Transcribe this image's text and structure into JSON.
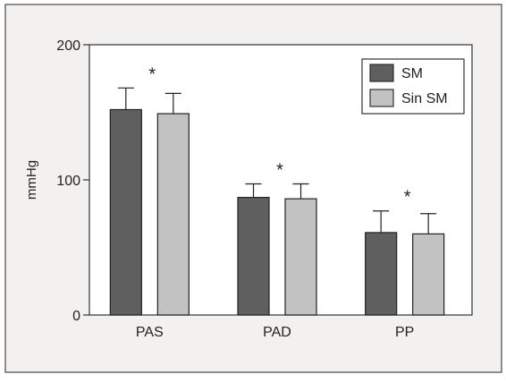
{
  "chart_data": {
    "type": "bar",
    "categories": [
      "PAS",
      "PAD",
      "PP"
    ],
    "series": [
      {
        "name": "SM",
        "values": [
          152,
          87,
          61
        ],
        "errors": [
          16,
          10,
          16
        ],
        "color": "#5f5f5f"
      },
      {
        "name": "Sin SM",
        "values": [
          149,
          86,
          60
        ],
        "errors": [
          15,
          11,
          15
        ],
        "color": "#c2c2c2"
      }
    ],
    "significance_markers": [
      "*",
      "*",
      "*"
    ],
    "ylabel": "mmHg",
    "xlabel": "",
    "title": "",
    "ylim": [
      0,
      200
    ],
    "yticks": [
      0,
      100,
      200
    ],
    "legend": "top-right",
    "grid": false
  }
}
